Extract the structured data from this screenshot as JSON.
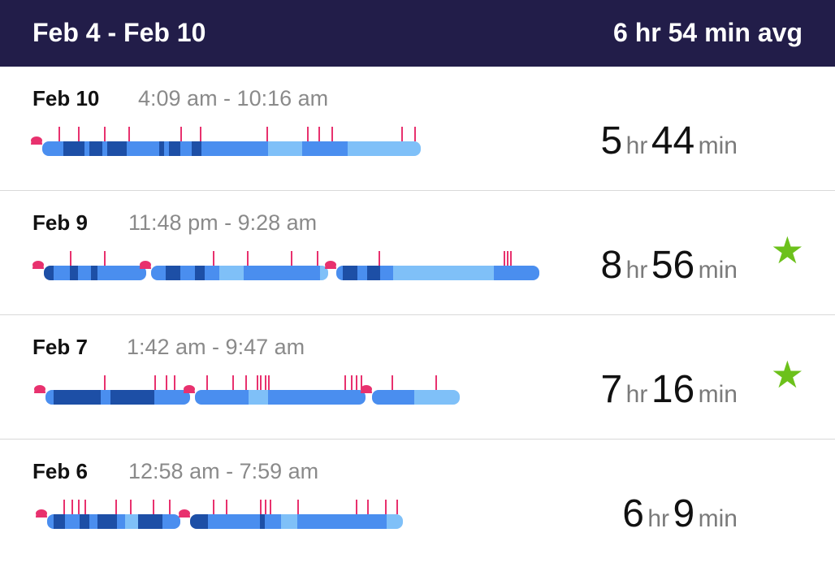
{
  "header": {
    "range": "Feb 4 - Feb 10",
    "average": "6 hr 54 min avg"
  },
  "colors": {
    "awake": "#e8316e",
    "rem": "#7fc0f8",
    "light": "#4a8eef",
    "deep": "#1d4fa6",
    "star": "#6cc11b",
    "header_bg": "#221d49"
  },
  "entries": [
    {
      "date": "Feb 10",
      "time_range": "4:09 am - 10:16 am",
      "hours": "5",
      "hr_unit": "hr",
      "minutes": "44",
      "min_unit": "min",
      "starred": false,
      "star_icon": ""
    },
    {
      "date": "Feb 9",
      "time_range": "11:48 pm - 9:28 am",
      "hours": "8",
      "hr_unit": "hr",
      "minutes": "56",
      "min_unit": "min",
      "starred": true,
      "star_icon": "★"
    },
    {
      "date": "Feb 7",
      "time_range": "1:42 am - 9:47 am",
      "hours": "7",
      "hr_unit": "hr",
      "minutes": "16",
      "min_unit": "min",
      "starred": true,
      "star_icon": "★"
    },
    {
      "date": "Feb 6",
      "time_range": "12:58 am - 7:59 am",
      "hours": "6",
      "hr_unit": "hr",
      "minutes": "9",
      "min_unit": "min",
      "starred": false,
      "star_icon": ""
    }
  ]
}
